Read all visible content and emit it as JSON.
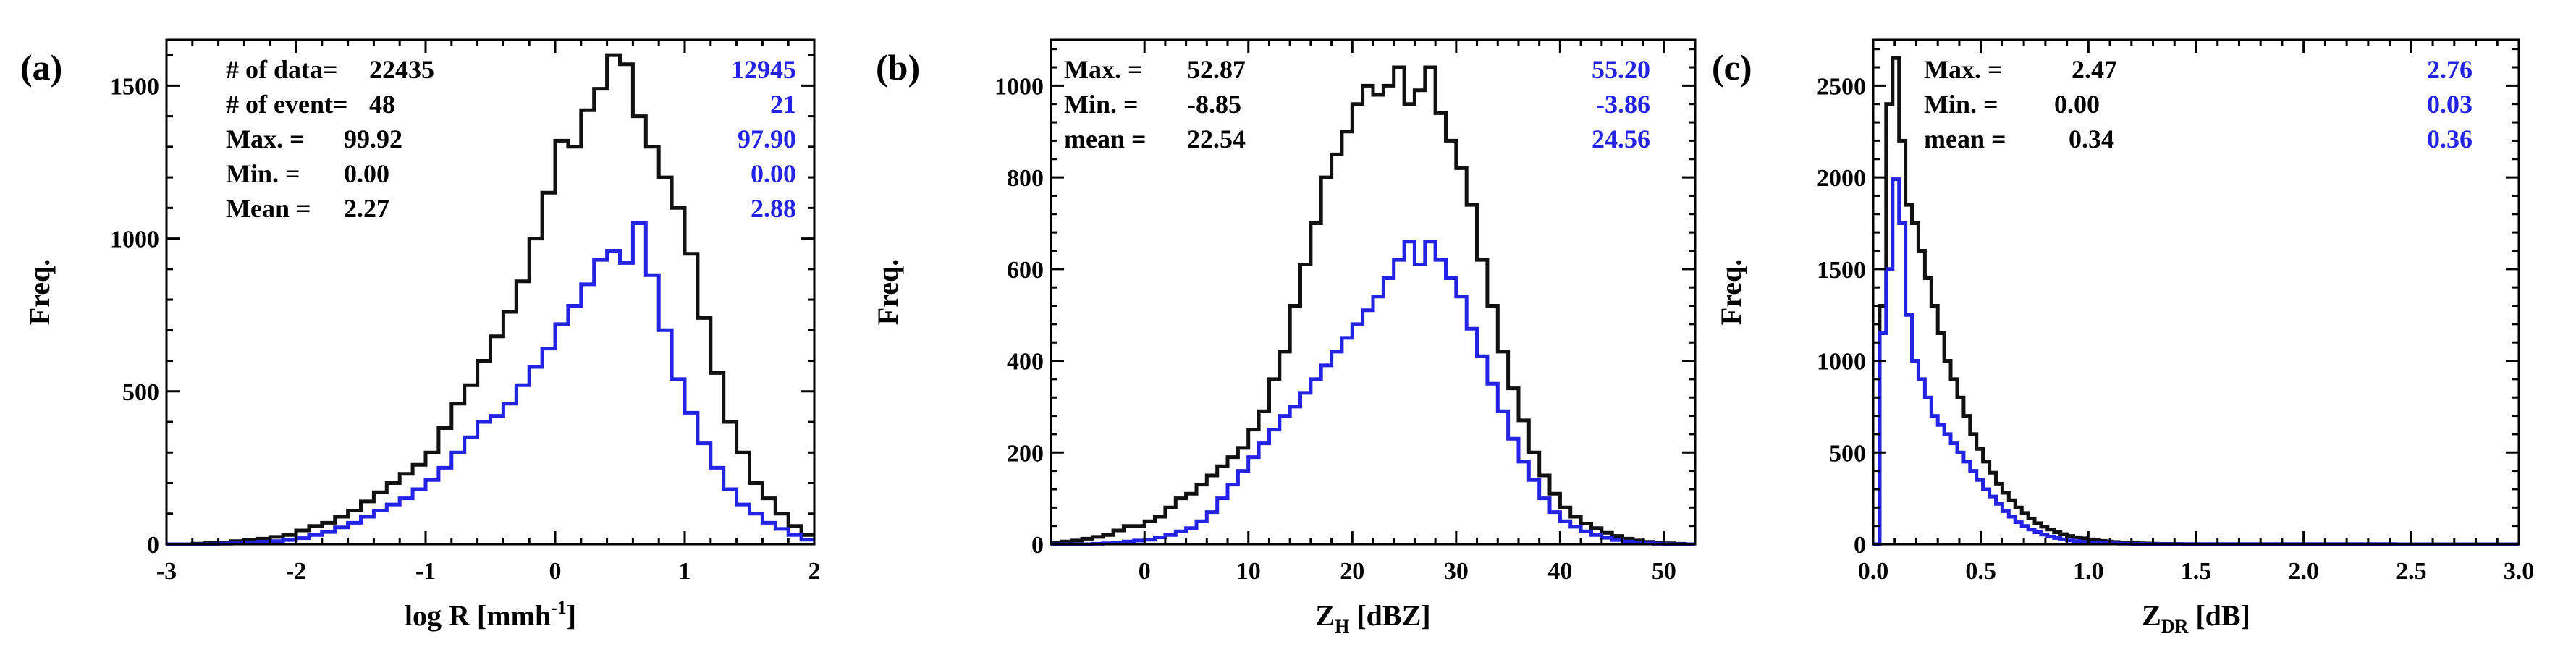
{
  "colors": {
    "black_series": "#111111",
    "blue_series": "#2323e6",
    "axis": "#000000"
  },
  "chart_data": [
    {
      "type": "histogram",
      "panel_label": "(a)",
      "ylabel": "Freq.",
      "xlabel_main": "log R [mmh",
      "xlabel_sup": "-1",
      "xlabel_end": "]",
      "xlim": [
        -3,
        2
      ],
      "ylim": [
        0,
        1650
      ],
      "xticks": [
        -3,
        -2,
        -1,
        0,
        1,
        2
      ],
      "xtick_labels": [
        "-3",
        "-2",
        "-1",
        "0",
        "1",
        "2"
      ],
      "yticks": [
        0,
        500,
        1000,
        1500
      ],
      "ytick_labels": [
        "0",
        "500",
        "1000",
        "1500"
      ],
      "bin_start": -3,
      "bin_width": 0.1,
      "series": [
        {
          "name": "black",
          "color": "#111111",
          "values": [
            0,
            0,
            2,
            4,
            6,
            10,
            14,
            18,
            24,
            30,
            45,
            60,
            70,
            90,
            110,
            140,
            170,
            200,
            230,
            260,
            300,
            380,
            460,
            520,
            600,
            680,
            760,
            860,
            1000,
            1150,
            1320,
            1300,
            1420,
            1490,
            1600,
            1570,
            1400,
            1300,
            1200,
            1100,
            950,
            740,
            560,
            400,
            300,
            200,
            150,
            100,
            60,
            30
          ]
        },
        {
          "name": "blue",
          "color": "#2323e6",
          "values": [
            0,
            0,
            0,
            0,
            2,
            3,
            5,
            8,
            10,
            14,
            20,
            30,
            40,
            55,
            70,
            90,
            110,
            130,
            150,
            180,
            210,
            250,
            300,
            350,
            400,
            420,
            460,
            520,
            580,
            640,
            720,
            780,
            850,
            930,
            960,
            920,
            1050,
            880,
            700,
            540,
            430,
            330,
            250,
            180,
            130,
            100,
            70,
            50,
            30,
            15
          ]
        }
      ],
      "stats_left": [
        {
          "label": "# of data=",
          "value": "22435"
        },
        {
          "label": "# of event=",
          "value": "48"
        },
        {
          "label": "Max. =",
          "value": "99.92"
        },
        {
          "label": "Min. =",
          "value": "0.00"
        },
        {
          "label": "Mean =",
          "value": "2.27"
        }
      ],
      "stats_right": [
        "12945",
        "21",
        "97.90",
        "0.00",
        "2.88"
      ]
    },
    {
      "type": "histogram",
      "panel_label": "(b)",
      "ylabel": "Freq.",
      "xlabel_main": "Z",
      "xlabel_sub": "H",
      "xlabel_end": " [dBZ]",
      "xlim": [
        -9,
        53
      ],
      "ylim": [
        0,
        1100
      ],
      "xticks": [
        0,
        10,
        20,
        30,
        40,
        50
      ],
      "xtick_labels": [
        "0",
        "10",
        "20",
        "30",
        "40",
        "50"
      ],
      "yticks": [
        0,
        200,
        400,
        600,
        800,
        1000
      ],
      "ytick_labels": [
        "0",
        "200",
        "400",
        "600",
        "800",
        "1000"
      ],
      "bin_start": -9,
      "bin_width": 1,
      "series": [
        {
          "name": "black",
          "color": "#111111",
          "values": [
            4,
            6,
            8,
            12,
            16,
            20,
            30,
            40,
            40,
            50,
            60,
            80,
            100,
            110,
            130,
            150,
            170,
            190,
            210,
            250,
            290,
            360,
            420,
            520,
            610,
            700,
            800,
            850,
            900,
            960,
            1000,
            980,
            1000,
            1040,
            960,
            990,
            1040,
            940,
            880,
            820,
            740,
            620,
            520,
            420,
            340,
            270,
            200,
            150,
            110,
            80,
            60,
            45,
            35,
            25,
            18,
            12,
            8,
            5,
            3,
            2,
            1,
            0
          ]
        },
        {
          "name": "blue",
          "color": "#2323e6",
          "values": [
            0,
            0,
            0,
            0,
            1,
            2,
            4,
            6,
            8,
            10,
            15,
            20,
            28,
            35,
            50,
            70,
            100,
            130,
            160,
            190,
            220,
            250,
            280,
            300,
            330,
            360,
            390,
            420,
            450,
            480,
            510,
            540,
            580,
            620,
            660,
            610,
            660,
            620,
            580,
            540,
            470,
            410,
            350,
            290,
            230,
            180,
            140,
            100,
            70,
            50,
            38,
            28,
            20,
            14,
            9,
            6,
            4,
            2,
            1,
            0,
            0,
            0
          ]
        }
      ],
      "stats_left": [
        {
          "label": "Max. =",
          "value": "52.87"
        },
        {
          "label": "Min. =",
          "value": "-8.85"
        },
        {
          "label": "mean =",
          "value": "22.54"
        }
      ],
      "stats_right": [
        "55.20",
        "-3.86",
        "24.56"
      ]
    },
    {
      "type": "histogram",
      "panel_label": "(c)",
      "ylabel": "Freq.",
      "xlabel_main": "Z",
      "xlabel_sub": "DR",
      "xlabel_end": " [dB]",
      "xlim": [
        0,
        3
      ],
      "ylim": [
        0,
        2750
      ],
      "xticks": [
        0,
        0.5,
        1,
        1.5,
        2,
        2.5,
        3
      ],
      "xtick_labels": [
        "0.0",
        "0.5",
        "1.0",
        "1.5",
        "2.0",
        "2.5",
        "3.0"
      ],
      "yticks": [
        0,
        500,
        1000,
        1500,
        2000,
        2500
      ],
      "ytick_labels": [
        "0",
        "500",
        "1000",
        "1500",
        "2000",
        "2500"
      ],
      "bin_start": 0,
      "bin_width": 0.03,
      "series": [
        {
          "name": "black",
          "color": "#111111",
          "values": [
            0,
            1300,
            2400,
            2650,
            2200,
            1850,
            1750,
            1600,
            1450,
            1300,
            1150,
            1000,
            900,
            800,
            700,
            600,
            520,
            450,
            390,
            330,
            280,
            240,
            200,
            170,
            140,
            115,
            95,
            80,
            65,
            55,
            45,
            38,
            32,
            26,
            22,
            18,
            15,
            12,
            10,
            8,
            6,
            5,
            4,
            3,
            2,
            2,
            1,
            1,
            0,
            0,
            0,
            0,
            0,
            0,
            0,
            0,
            0,
            0,
            0,
            0,
            0,
            0,
            0,
            0,
            0,
            0,
            0,
            0,
            0,
            0,
            0,
            0,
            0,
            0,
            0,
            0,
            0,
            0,
            0,
            0,
            0,
            0,
            0,
            0,
            0,
            0,
            0,
            0,
            0,
            0,
            0,
            0,
            0,
            0,
            0,
            0,
            0,
            0,
            0,
            0
          ]
        },
        {
          "name": "blue",
          "color": "#2323e6",
          "values": [
            0,
            1150,
            1500,
            1990,
            1750,
            1250,
            1000,
            900,
            800,
            700,
            650,
            600,
            550,
            500,
            450,
            400,
            350,
            300,
            260,
            220,
            180,
            150,
            120,
            100,
            80,
            65,
            52,
            42,
            34,
            27,
            21,
            17,
            13,
            10,
            8,
            6,
            5,
            4,
            3,
            3,
            2,
            2,
            1,
            1,
            1,
            1,
            1,
            1,
            1,
            1,
            1,
            1,
            1,
            1,
            1,
            1,
            1,
            1,
            1,
            1,
            1,
            1,
            1,
            1,
            1,
            1,
            1,
            1,
            1,
            1,
            1,
            1,
            1,
            1,
            1,
            1,
            1,
            1,
            1,
            1,
            1,
            0,
            0,
            0,
            0,
            0,
            0,
            0,
            0,
            0,
            0,
            0,
            0,
            0,
            0,
            0,
            0,
            0,
            0,
            0
          ]
        }
      ],
      "stats_left": [
        {
          "label": "Max. =",
          "value": "2.47"
        },
        {
          "label": "Min. =",
          "value": "0.00"
        },
        {
          "label": "mean =",
          "value": "0.34"
        }
      ],
      "stats_right": [
        "2.76",
        "0.03",
        "0.36"
      ]
    }
  ]
}
